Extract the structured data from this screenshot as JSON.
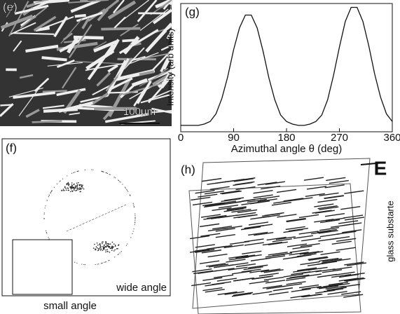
{
  "chart_data": {
    "type": "line",
    "label": "(g)",
    "xlabel": "Azimuthal angle θ (deg)",
    "ylabel": "Intensity (arb units)",
    "x": [
      0,
      10,
      20,
      30,
      40,
      50,
      60,
      70,
      80,
      90,
      100,
      110,
      120,
      130,
      140,
      150,
      160,
      170,
      180,
      190,
      200,
      210,
      220,
      230,
      240,
      250,
      260,
      270,
      280,
      290,
      300,
      310,
      320,
      330,
      340,
      350,
      360
    ],
    "series": [
      {
        "color": "#111111",
        "values": [
          0.05,
          0.05,
          0.05,
          0.05,
          0.06,
          0.08,
          0.14,
          0.26,
          0.43,
          0.64,
          0.81,
          0.91,
          0.91,
          0.81,
          0.63,
          0.42,
          0.25,
          0.13,
          0.08,
          0.06,
          0.05,
          0.05,
          0.06,
          0.08,
          0.13,
          0.25,
          0.44,
          0.66,
          0.86,
          0.97,
          0.97,
          0.86,
          0.67,
          0.45,
          0.27,
          0.14,
          0.08
        ]
      }
    ],
    "xlim": [
      0,
      360
    ],
    "xticks": [
      0,
      90,
      180,
      270,
      360
    ],
    "ylim": [
      0,
      1
    ]
  },
  "panels": {
    "e": {
      "label": "(e)",
      "scale_bar": "100μm"
    },
    "f": {
      "label": "(f)",
      "wide": "wide angle",
      "small": "small angle"
    },
    "h": {
      "label": "(h)",
      "field": "E",
      "substrate": "glass substarte"
    }
  }
}
